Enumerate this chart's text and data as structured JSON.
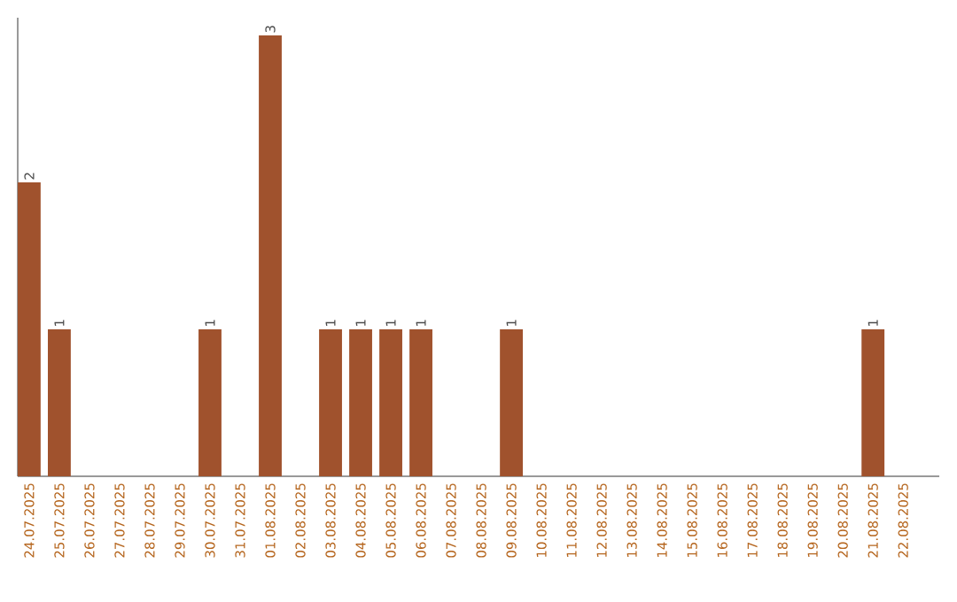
{
  "chart_data": {
    "type": "bar",
    "categories": [
      "24.07.2025",
      "25.07.2025",
      "26.07.2025",
      "27.07.2025",
      "28.07.2025",
      "29.07.2025",
      "30.07.2025",
      "31.07.2025",
      "01.08.2025",
      "02.08.2025",
      "03.08.2025",
      "04.08.2025",
      "05.08.2025",
      "06.08.2025",
      "07.08.2025",
      "08.08.2025",
      "09.08.2025",
      "10.08.2025",
      "11.08.2025",
      "12.08.2025",
      "13.08.2025",
      "14.08.2025",
      "15.08.2025",
      "16.08.2025",
      "17.08.2025",
      "18.08.2025",
      "19.08.2025",
      "20.08.2025",
      "21.08.2025",
      "22.08.2025"
    ],
    "values": [
      2,
      1,
      0,
      0,
      0,
      0,
      1,
      0,
      3,
      0,
      1,
      1,
      1,
      1,
      0,
      0,
      1,
      0,
      0,
      0,
      0,
      0,
      0,
      0,
      0,
      0,
      0,
      0,
      1,
      0
    ],
    "value_labels": [
      "2",
      "1",
      null,
      null,
      null,
      null,
      "1",
      null,
      "3",
      null,
      "1",
      "1",
      "1",
      "1",
      null,
      null,
      "1",
      null,
      null,
      null,
      null,
      null,
      null,
      null,
      null,
      null,
      null,
      null,
      "1",
      null
    ],
    "color": "#a0522d",
    "tick_labels": "x"
  }
}
